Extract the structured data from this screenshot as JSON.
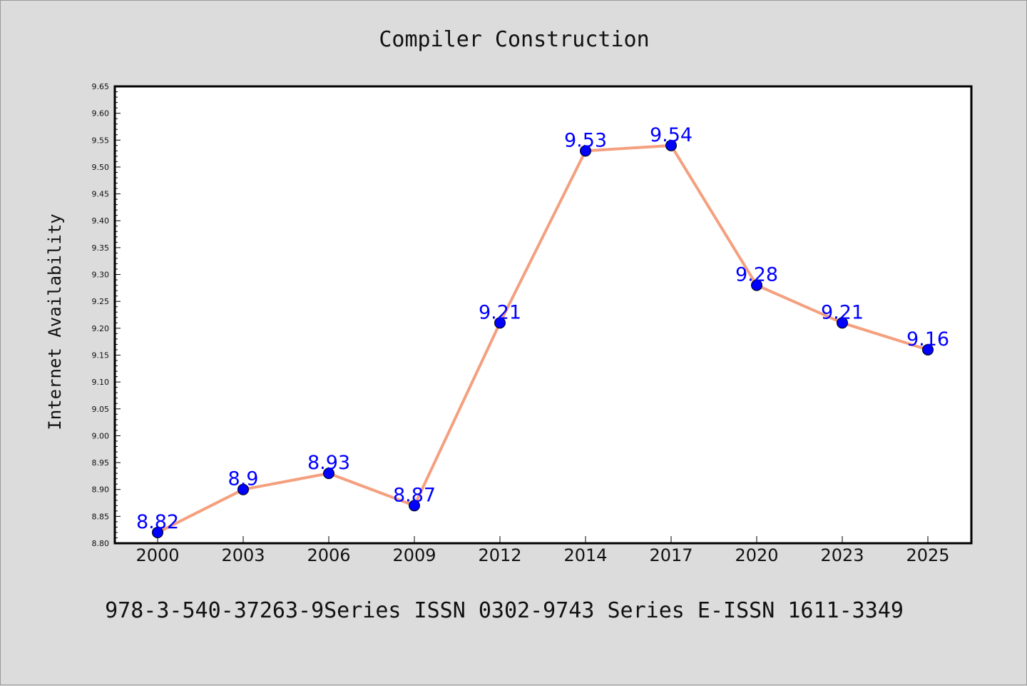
{
  "chart_data": {
    "type": "line",
    "title": "Compiler Construction",
    "ylabel": "Internet Availability",
    "xlabel": "",
    "categories": [
      "2000",
      "2003",
      "2006",
      "2009",
      "2012",
      "2014",
      "2017",
      "2020",
      "2023",
      "2025"
    ],
    "series": [
      {
        "values": [
          8.82,
          8.9,
          8.93,
          8.87,
          9.21,
          9.53,
          9.54,
          9.28,
          9.21,
          9.16
        ],
        "labels": [
          "8.82",
          "8.9",
          "8.93",
          "8.87",
          "9.21",
          "9.53",
          "9.54",
          "9.28",
          "9.21",
          "9.16"
        ]
      }
    ],
    "ylim": [
      8.8,
      9.65
    ],
    "yticks": [
      "8.80",
      "8.85",
      "8.90",
      "8.95",
      "9.00",
      "9.05",
      "9.10",
      "9.15",
      "9.20",
      "9.25",
      "9.30",
      "9.35",
      "9.40",
      "9.45",
      "9.50",
      "9.55",
      "9.60",
      "9.65"
    ],
    "grid": false,
    "line_color": "#f4a07f",
    "marker_color": "#0000ff",
    "label_color": "#0000ff",
    "background_color": "#dcdcdc",
    "plot_background": "#ffffff"
  },
  "footer": "978-3-540-37263-9Series ISSN 0302-9743 Series E-ISSN 1611-3349"
}
